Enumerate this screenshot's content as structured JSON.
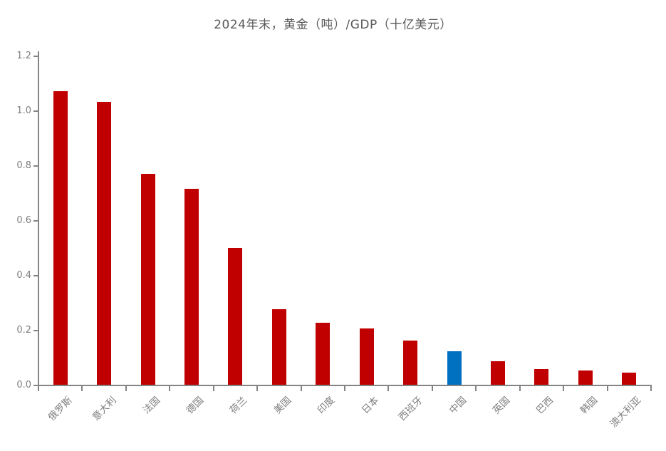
{
  "chart_data": {
    "type": "bar",
    "title": "2024年末，黄金（吨）/GDP（十亿美元）",
    "categories": [
      "俄罗斯",
      "意大利",
      "法国",
      "德国",
      "荷兰",
      "美国",
      "印度",
      "日本",
      "西班牙",
      "中国",
      "英国",
      "巴西",
      "韩国",
      "澳大利亚"
    ],
    "values": [
      1.07,
      1.03,
      0.77,
      0.715,
      0.5,
      0.275,
      0.225,
      0.205,
      0.16,
      0.122,
      0.085,
      0.056,
      0.053,
      0.044
    ],
    "highlight_category": "中国",
    "bar_color": "#c00000",
    "highlight_color": "#0070c0",
    "title_color": "#595959",
    "axis_color": "#848484",
    "tick_label_color": "#7f7f7f",
    "ylim": [
      0,
      1.2
    ],
    "yticks": [
      "0.0",
      "0.2",
      "0.4",
      "0.6",
      "0.8",
      "1.0",
      "1.2"
    ],
    "xlabel": "",
    "ylabel": "",
    "grid": false,
    "legend": "none"
  }
}
